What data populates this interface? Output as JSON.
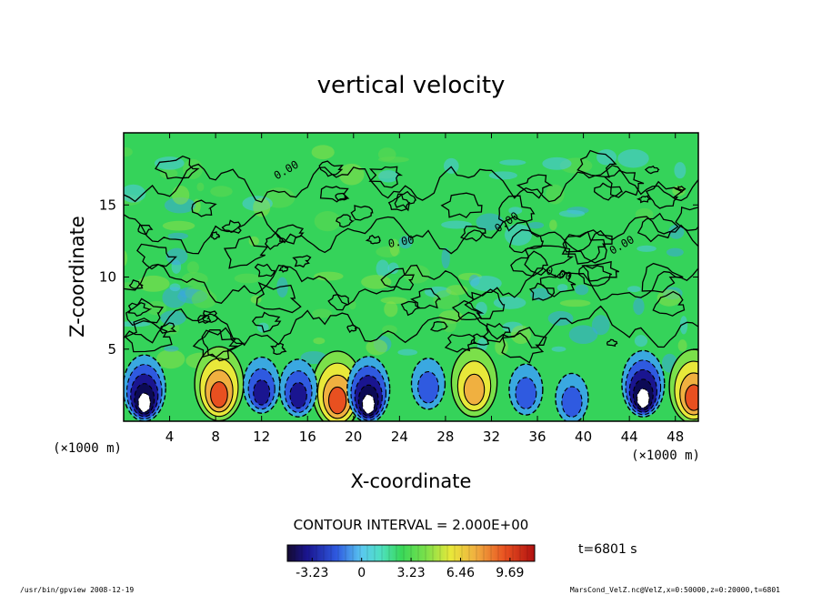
{
  "chart_data": {
    "type": "heatmap",
    "title": "vertical velocity",
    "xlabel": "X-coordinate",
    "ylabel": "Z-coordinate",
    "x_unit": "(×1000 m)",
    "z_unit": "(×1000 m)",
    "xlim": [
      0,
      50
    ],
    "zlim": [
      0,
      20
    ],
    "x_ticks": [
      "4",
      "8",
      "12",
      "16",
      "20",
      "24",
      "28",
      "32",
      "36",
      "40",
      "44",
      "48"
    ],
    "z_ticks": [
      "5",
      "10",
      "15"
    ],
    "contour_interval_text": "CONTOUR INTERVAL = 2.000E+00",
    "colorbar": {
      "range": [
        -4.85,
        11.3
      ],
      "tick_labels": [
        "-3.23",
        "0",
        "3.23",
        "6.46",
        "9.69"
      ],
      "tick_values": [
        -3.23,
        0,
        3.23,
        6.46,
        9.69
      ]
    },
    "contour_labels": [
      "0.00",
      "0.00",
      "0.00",
      "0.00",
      "0.00"
    ],
    "features": [
      {
        "kind": "max",
        "x": 8.3,
        "z": 2.6,
        "value": 9
      },
      {
        "kind": "max",
        "x": 18.6,
        "z": 2.2,
        "value": 10
      },
      {
        "kind": "max",
        "x": 30.5,
        "z": 2.7,
        "value": 7
      },
      {
        "kind": "max",
        "x": 49.6,
        "z": 2.4,
        "value": 9
      },
      {
        "kind": "min",
        "x": 1.8,
        "z": 2.3,
        "value": -4.5
      },
      {
        "kind": "min",
        "x": 12.0,
        "z": 2.5,
        "value": -2.5
      },
      {
        "kind": "min",
        "x": 15.2,
        "z": 2.3,
        "value": -2.8
      },
      {
        "kind": "min",
        "x": 21.3,
        "z": 2.2,
        "value": -4.5
      },
      {
        "kind": "min",
        "x": 26.5,
        "z": 2.6,
        "value": -1.5
      },
      {
        "kind": "min",
        "x": 35.0,
        "z": 2.2,
        "value": -1.5
      },
      {
        "kind": "min",
        "x": 39.0,
        "z": 1.6,
        "value": -1.2
      },
      {
        "kind": "min",
        "x": 45.2,
        "z": 2.6,
        "value": -4.5
      }
    ]
  },
  "footer": {
    "left": "/usr/bin/gpview   2008-12-19",
    "right": "MarsCond_VelZ.nc@VelZ,x=0:50000,z=0:20000,t=6801",
    "time": "t=6801  s"
  },
  "colors": {
    "background_field": "#35d35a",
    "strong_positive": "#e03010",
    "strong_negative": "#1a1590"
  }
}
